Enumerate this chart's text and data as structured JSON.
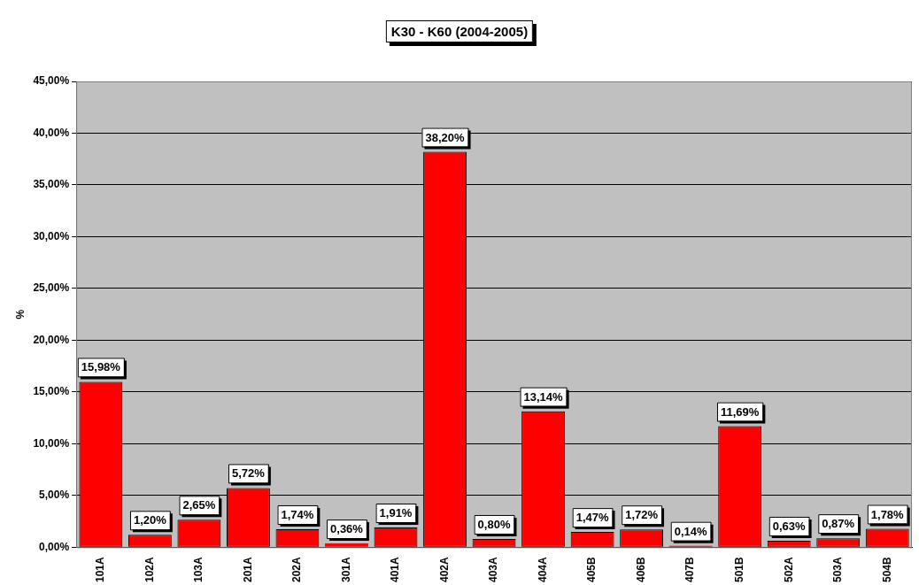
{
  "chart_data": {
    "type": "bar",
    "title": "K30 - K60 (2004-2005)",
    "ylabel": "%",
    "categories": [
      "101A",
      "102A",
      "103A",
      "201A",
      "202A",
      "301A",
      "401A",
      "402A",
      "403A",
      "404A",
      "405B",
      "406B",
      "407B",
      "501B",
      "502A",
      "503A",
      "504B"
    ],
    "values": [
      15.98,
      1.2,
      2.65,
      5.72,
      1.74,
      0.36,
      1.91,
      38.2,
      0.8,
      13.14,
      1.47,
      1.72,
      0.14,
      11.69,
      0.63,
      0.87,
      1.78
    ],
    "value_labels": [
      "15,98%",
      "1,20%",
      "2,65%",
      "5,72%",
      "1,74%",
      "0,36%",
      "1,91%",
      "38,20%",
      "0,80%",
      "13,14%",
      "1,47%",
      "1,72%",
      "0,14%",
      "11,69%",
      "0,63%",
      "0,87%",
      "1,78%"
    ],
    "color": "#ff0000",
    "ylim": [
      0,
      45
    ],
    "yticks": [
      {
        "value": 0,
        "label": "0,00%"
      },
      {
        "value": 5,
        "label": "5,00%"
      },
      {
        "value": 10,
        "label": "10,00%"
      },
      {
        "value": 15,
        "label": "15,00%"
      },
      {
        "value": 20,
        "label": "20,00%"
      },
      {
        "value": 25,
        "label": "25,00%"
      },
      {
        "value": 30,
        "label": "30,00%"
      },
      {
        "value": 35,
        "label": "35,00%"
      },
      {
        "value": 40,
        "label": "40,00%"
      },
      {
        "value": 45,
        "label": "45,00%"
      }
    ],
    "grid": "y",
    "legend": false
  }
}
